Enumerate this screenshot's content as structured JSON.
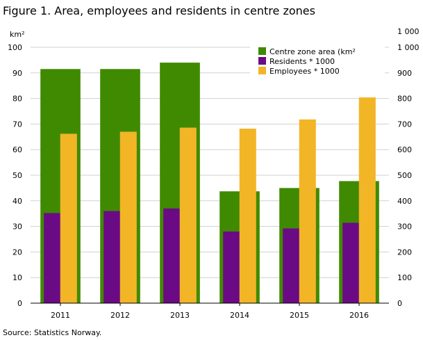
{
  "title": "Figure 1. Area, employees and residents in centre zones",
  "source": "Source: Statistics Norway.",
  "chart_data": {
    "type": "bar",
    "categories": [
      "2011",
      "2012",
      "2013",
      "2014",
      "2015",
      "2016"
    ],
    "series": [
      {
        "name": "Centre zone area (km²",
        "axis": "left",
        "color": "#3f8a00",
        "values": [
          91.5,
          91.5,
          94,
          43.7,
          45,
          47.7
        ]
      },
      {
        "name": "Residents * 1000",
        "axis": "right",
        "color": "#6b0a85",
        "values": [
          352,
          360,
          370,
          280,
          292,
          314
        ]
      },
      {
        "name": "Employees * 1000",
        "axis": "right",
        "color": "#f2b526",
        "values": [
          662,
          670,
          686,
          682,
          718,
          804
        ]
      }
    ],
    "ylabel_left": "km²",
    "ylabel_right": "1 000",
    "ylim_left": [
      0,
      100
    ],
    "yticks_left": [
      "0",
      "10",
      "20",
      "30",
      "40",
      "50",
      "60",
      "70",
      "80",
      "90",
      "100"
    ],
    "ylim_right": [
      0,
      1000
    ],
    "yticks_right": [
      "0",
      "100",
      "200",
      "300",
      "400",
      "500",
      "600",
      "700",
      "800",
      "900",
      "1 000"
    ],
    "grid": true,
    "legend": "top-right"
  }
}
